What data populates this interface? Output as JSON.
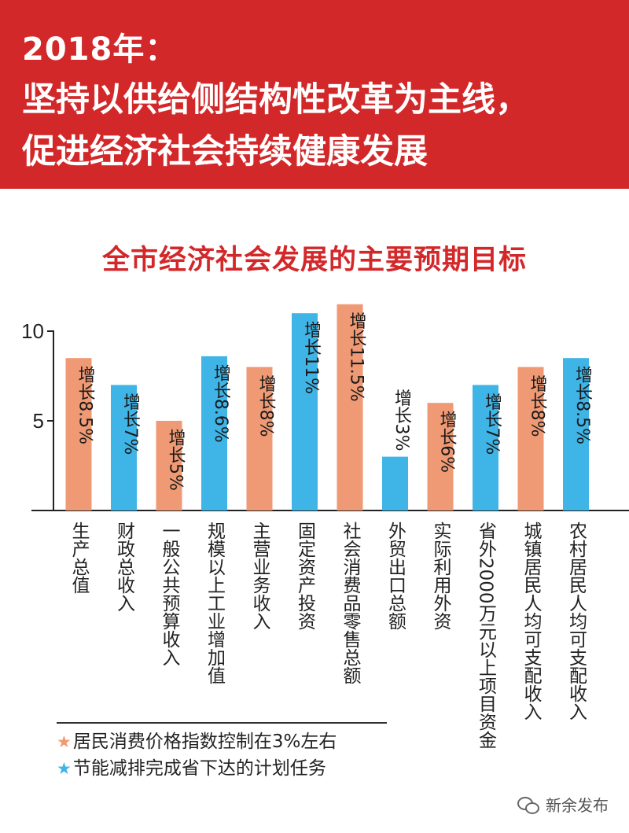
{
  "header": {
    "year": "2018年：",
    "line1": "坚持以供给侧结构性改革为主线，",
    "line2": "促进经济社会持续健康发展"
  },
  "chart_data": {
    "type": "bar",
    "title": "全市经济社会发展的主要预期目标",
    "yticks": [
      5,
      10
    ],
    "ylim": [
      0,
      11.5
    ],
    "categories": [
      "生产总值",
      "财政总收入",
      "一般公共预算收入",
      "规模以上工业增加值",
      "主营业务收入",
      "固定资产投资",
      "社会消费品零售总额",
      "外贸出口总额",
      "实际利用外资",
      "省外2000万元以上项目资金",
      "城镇居民人均可支配收入",
      "农村居民人均可支配收入"
    ],
    "values": [
      8.5,
      7,
      5,
      8.6,
      8,
      11,
      11.5,
      3,
      6,
      7,
      8,
      8.5
    ],
    "labels": [
      "增长8.5%",
      "增长7%",
      "增长5%",
      "增长8.6%",
      "增长8%",
      "增长11%",
      "增长11.5%",
      "增长3%",
      "增长6%",
      "增长7%",
      "增长8%",
      "增长8.5%"
    ],
    "bar_colors": [
      "salmon",
      "blue",
      "salmon",
      "blue",
      "salmon",
      "blue",
      "salmon",
      "blue",
      "salmon",
      "blue",
      "salmon",
      "blue"
    ],
    "colors": {
      "salmon": "#ef9a74",
      "blue": "#3fb4e6",
      "red": "#d3282a"
    }
  },
  "legend": [
    {
      "text": "居民消费价格指数控制在3%左右",
      "star_color": "#ef9a74"
    },
    {
      "text": "节能减排完成省下达的计划任务",
      "star_color": "#3fb4e6"
    }
  ],
  "footer": {
    "brand": "新余发布",
    "icon": "wechat-icon"
  }
}
